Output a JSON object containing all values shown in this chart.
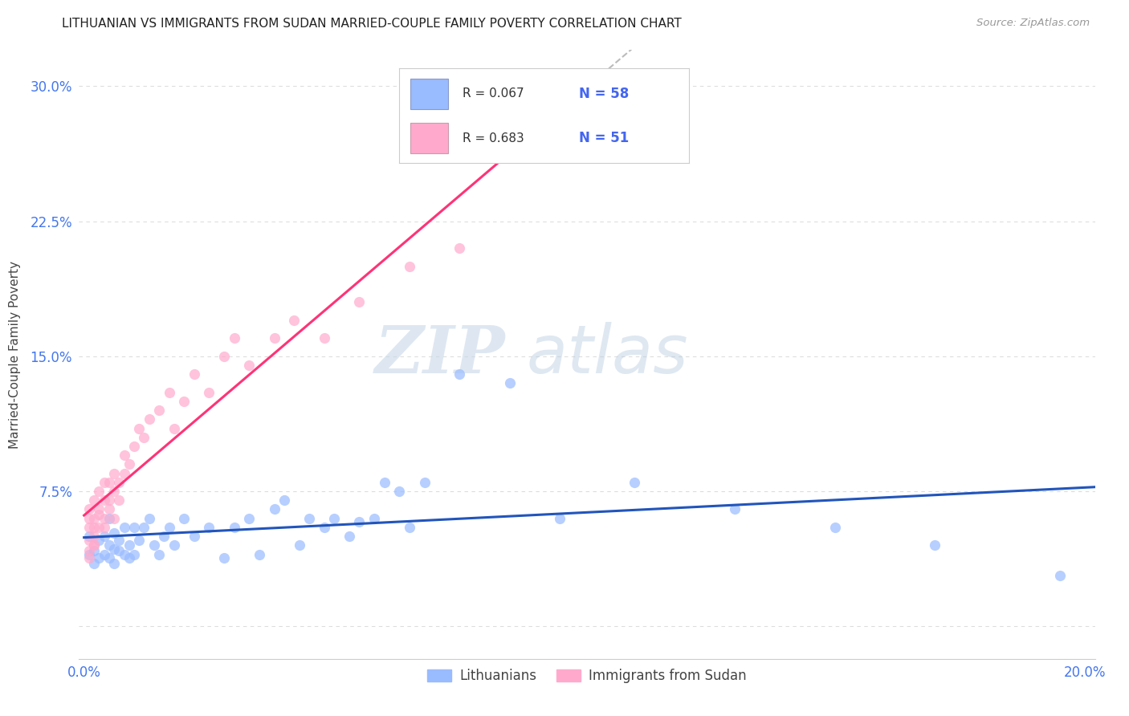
{
  "title": "LITHUANIAN VS IMMIGRANTS FROM SUDAN MARRIED-COUPLE FAMILY POVERTY CORRELATION CHART",
  "source": "Source: ZipAtlas.com",
  "ylabel": "Married-Couple Family Poverty",
  "xlim": [
    -0.001,
    0.202
  ],
  "ylim": [
    -0.018,
    0.32
  ],
  "xticks": [
    0.0,
    0.05,
    0.1,
    0.15,
    0.2
  ],
  "xticklabels": [
    "0.0%",
    "",
    "",
    "",
    "20.0%"
  ],
  "yticks": [
    0.0,
    0.075,
    0.15,
    0.225,
    0.3
  ],
  "yticklabels": [
    "",
    "7.5%",
    "15.0%",
    "22.5%",
    "30.0%"
  ],
  "R_blue": 0.067,
  "N_blue": 58,
  "R_pink": 0.683,
  "N_pink": 51,
  "color_blue": "#99BBFF",
  "color_pink": "#FFAACC",
  "color_trend_blue": "#2255BB",
  "color_trend_pink": "#FF3377",
  "color_trend_gray": "#BBBBBB",
  "blue_x": [
    0.001,
    0.001,
    0.002,
    0.002,
    0.003,
    0.003,
    0.004,
    0.004,
    0.005,
    0.005,
    0.005,
    0.006,
    0.006,
    0.006,
    0.007,
    0.007,
    0.008,
    0.008,
    0.009,
    0.009,
    0.01,
    0.01,
    0.011,
    0.012,
    0.013,
    0.014,
    0.015,
    0.016,
    0.017,
    0.018,
    0.02,
    0.022,
    0.025,
    0.028,
    0.03,
    0.033,
    0.035,
    0.038,
    0.04,
    0.043,
    0.045,
    0.048,
    0.05,
    0.053,
    0.055,
    0.058,
    0.06,
    0.063,
    0.065,
    0.068,
    0.075,
    0.085,
    0.095,
    0.11,
    0.13,
    0.15,
    0.17,
    0.195
  ],
  "blue_y": [
    0.05,
    0.04,
    0.042,
    0.035,
    0.038,
    0.048,
    0.05,
    0.04,
    0.045,
    0.06,
    0.038,
    0.052,
    0.043,
    0.035,
    0.048,
    0.042,
    0.055,
    0.04,
    0.045,
    0.038,
    0.055,
    0.04,
    0.048,
    0.055,
    0.06,
    0.045,
    0.04,
    0.05,
    0.055,
    0.045,
    0.06,
    0.05,
    0.055,
    0.038,
    0.055,
    0.06,
    0.04,
    0.065,
    0.07,
    0.045,
    0.06,
    0.055,
    0.06,
    0.05,
    0.058,
    0.06,
    0.08,
    0.075,
    0.055,
    0.08,
    0.14,
    0.135,
    0.06,
    0.08,
    0.065,
    0.055,
    0.045,
    0.028
  ],
  "pink_x": [
    0.001,
    0.001,
    0.001,
    0.001,
    0.001,
    0.001,
    0.002,
    0.002,
    0.002,
    0.002,
    0.002,
    0.002,
    0.003,
    0.003,
    0.003,
    0.003,
    0.004,
    0.004,
    0.004,
    0.004,
    0.005,
    0.005,
    0.005,
    0.006,
    0.006,
    0.006,
    0.007,
    0.007,
    0.008,
    0.008,
    0.009,
    0.01,
    0.011,
    0.012,
    0.013,
    0.015,
    0.017,
    0.018,
    0.02,
    0.022,
    0.025,
    0.028,
    0.03,
    0.033,
    0.038,
    0.042,
    0.048,
    0.055,
    0.065,
    0.075,
    0.09
  ],
  "pink_y": [
    0.048,
    0.055,
    0.042,
    0.038,
    0.06,
    0.065,
    0.045,
    0.055,
    0.06,
    0.07,
    0.05,
    0.045,
    0.062,
    0.055,
    0.075,
    0.065,
    0.06,
    0.07,
    0.08,
    0.055,
    0.065,
    0.07,
    0.08,
    0.075,
    0.085,
    0.06,
    0.08,
    0.07,
    0.085,
    0.095,
    0.09,
    0.1,
    0.11,
    0.105,
    0.115,
    0.12,
    0.13,
    0.11,
    0.125,
    0.14,
    0.13,
    0.15,
    0.16,
    0.145,
    0.16,
    0.17,
    0.16,
    0.18,
    0.2,
    0.21,
    0.27
  ],
  "watermark_zip": "ZIP",
  "watermark_atlas": "atlas",
  "background_color": "#FFFFFF",
  "grid_color": "#DDDDDD"
}
